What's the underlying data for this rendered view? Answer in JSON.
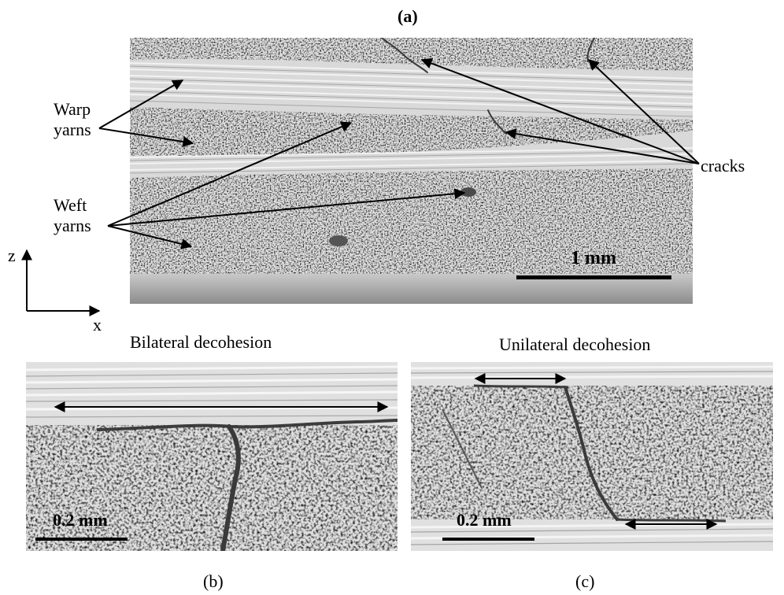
{
  "figure": {
    "panel_a": {
      "letter": "(a)",
      "scale_bar": "1 mm",
      "callouts": {
        "warp": [
          "Warp",
          "yarns"
        ],
        "weft": [
          "Weft",
          "yarns"
        ],
        "cracks": "cracks"
      },
      "axes": {
        "z": "z",
        "x": "x"
      }
    },
    "panel_b": {
      "letter": "(b)",
      "caption": "Bilateral decohesion",
      "scale_bar": "0.2 mm"
    },
    "panel_c": {
      "letter": "(c)",
      "caption": "Unilateral decohesion",
      "scale_bar": "0.2 mm"
    }
  }
}
